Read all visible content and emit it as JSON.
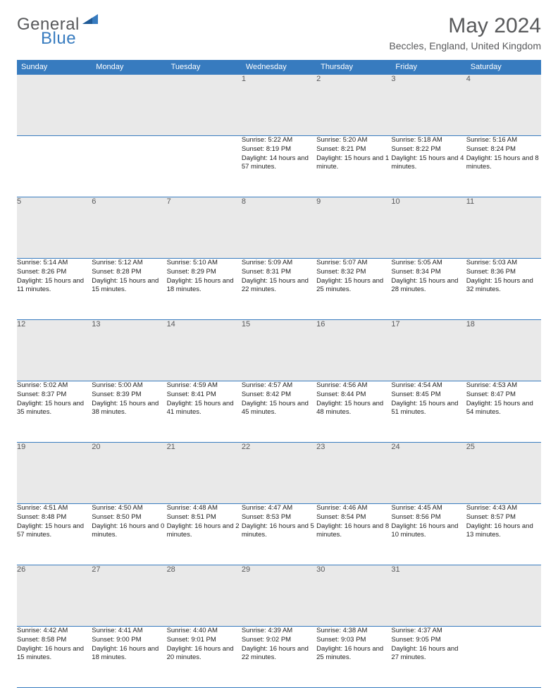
{
  "brand": {
    "part1": "General",
    "part2": "Blue"
  },
  "title": "May 2024",
  "location": "Beccles, England, United Kingdom",
  "colors": {
    "header_bg": "#377bbf",
    "header_text": "#ffffff",
    "daynum_bg": "#e9e9e9",
    "rule": "#377bbf",
    "text_grey": "#58595b"
  },
  "weekdays": [
    "Sunday",
    "Monday",
    "Tuesday",
    "Wednesday",
    "Thursday",
    "Friday",
    "Saturday"
  ],
  "weeks": [
    [
      null,
      null,
      null,
      {
        "n": "1",
        "sr": "5:22 AM",
        "ss": "8:19 PM",
        "dl": "14 hours and 57 minutes."
      },
      {
        "n": "2",
        "sr": "5:20 AM",
        "ss": "8:21 PM",
        "dl": "15 hours and 1 minute."
      },
      {
        "n": "3",
        "sr": "5:18 AM",
        "ss": "8:22 PM",
        "dl": "15 hours and 4 minutes."
      },
      {
        "n": "4",
        "sr": "5:16 AM",
        "ss": "8:24 PM",
        "dl": "15 hours and 8 minutes."
      }
    ],
    [
      {
        "n": "5",
        "sr": "5:14 AM",
        "ss": "8:26 PM",
        "dl": "15 hours and 11 minutes."
      },
      {
        "n": "6",
        "sr": "5:12 AM",
        "ss": "8:28 PM",
        "dl": "15 hours and 15 minutes."
      },
      {
        "n": "7",
        "sr": "5:10 AM",
        "ss": "8:29 PM",
        "dl": "15 hours and 18 minutes."
      },
      {
        "n": "8",
        "sr": "5:09 AM",
        "ss": "8:31 PM",
        "dl": "15 hours and 22 minutes."
      },
      {
        "n": "9",
        "sr": "5:07 AM",
        "ss": "8:32 PM",
        "dl": "15 hours and 25 minutes."
      },
      {
        "n": "10",
        "sr": "5:05 AM",
        "ss": "8:34 PM",
        "dl": "15 hours and 28 minutes."
      },
      {
        "n": "11",
        "sr": "5:03 AM",
        "ss": "8:36 PM",
        "dl": "15 hours and 32 minutes."
      }
    ],
    [
      {
        "n": "12",
        "sr": "5:02 AM",
        "ss": "8:37 PM",
        "dl": "15 hours and 35 minutes."
      },
      {
        "n": "13",
        "sr": "5:00 AM",
        "ss": "8:39 PM",
        "dl": "15 hours and 38 minutes."
      },
      {
        "n": "14",
        "sr": "4:59 AM",
        "ss": "8:41 PM",
        "dl": "15 hours and 41 minutes."
      },
      {
        "n": "15",
        "sr": "4:57 AM",
        "ss": "8:42 PM",
        "dl": "15 hours and 45 minutes."
      },
      {
        "n": "16",
        "sr": "4:56 AM",
        "ss": "8:44 PM",
        "dl": "15 hours and 48 minutes."
      },
      {
        "n": "17",
        "sr": "4:54 AM",
        "ss": "8:45 PM",
        "dl": "15 hours and 51 minutes."
      },
      {
        "n": "18",
        "sr": "4:53 AM",
        "ss": "8:47 PM",
        "dl": "15 hours and 54 minutes."
      }
    ],
    [
      {
        "n": "19",
        "sr": "4:51 AM",
        "ss": "8:48 PM",
        "dl": "15 hours and 57 minutes."
      },
      {
        "n": "20",
        "sr": "4:50 AM",
        "ss": "8:50 PM",
        "dl": "16 hours and 0 minutes."
      },
      {
        "n": "21",
        "sr": "4:48 AM",
        "ss": "8:51 PM",
        "dl": "16 hours and 2 minutes."
      },
      {
        "n": "22",
        "sr": "4:47 AM",
        "ss": "8:53 PM",
        "dl": "16 hours and 5 minutes."
      },
      {
        "n": "23",
        "sr": "4:46 AM",
        "ss": "8:54 PM",
        "dl": "16 hours and 8 minutes."
      },
      {
        "n": "24",
        "sr": "4:45 AM",
        "ss": "8:56 PM",
        "dl": "16 hours and 10 minutes."
      },
      {
        "n": "25",
        "sr": "4:43 AM",
        "ss": "8:57 PM",
        "dl": "16 hours and 13 minutes."
      }
    ],
    [
      {
        "n": "26",
        "sr": "4:42 AM",
        "ss": "8:58 PM",
        "dl": "16 hours and 15 minutes."
      },
      {
        "n": "27",
        "sr": "4:41 AM",
        "ss": "9:00 PM",
        "dl": "16 hours and 18 minutes."
      },
      {
        "n": "28",
        "sr": "4:40 AM",
        "ss": "9:01 PM",
        "dl": "16 hours and 20 minutes."
      },
      {
        "n": "29",
        "sr": "4:39 AM",
        "ss": "9:02 PM",
        "dl": "16 hours and 22 minutes."
      },
      {
        "n": "30",
        "sr": "4:38 AM",
        "ss": "9:03 PM",
        "dl": "16 hours and 25 minutes."
      },
      {
        "n": "31",
        "sr": "4:37 AM",
        "ss": "9:05 PM",
        "dl": "16 hours and 27 minutes."
      },
      null
    ]
  ],
  "labels": {
    "sunrise": "Sunrise:",
    "sunset": "Sunset:",
    "daylight": "Daylight:"
  }
}
